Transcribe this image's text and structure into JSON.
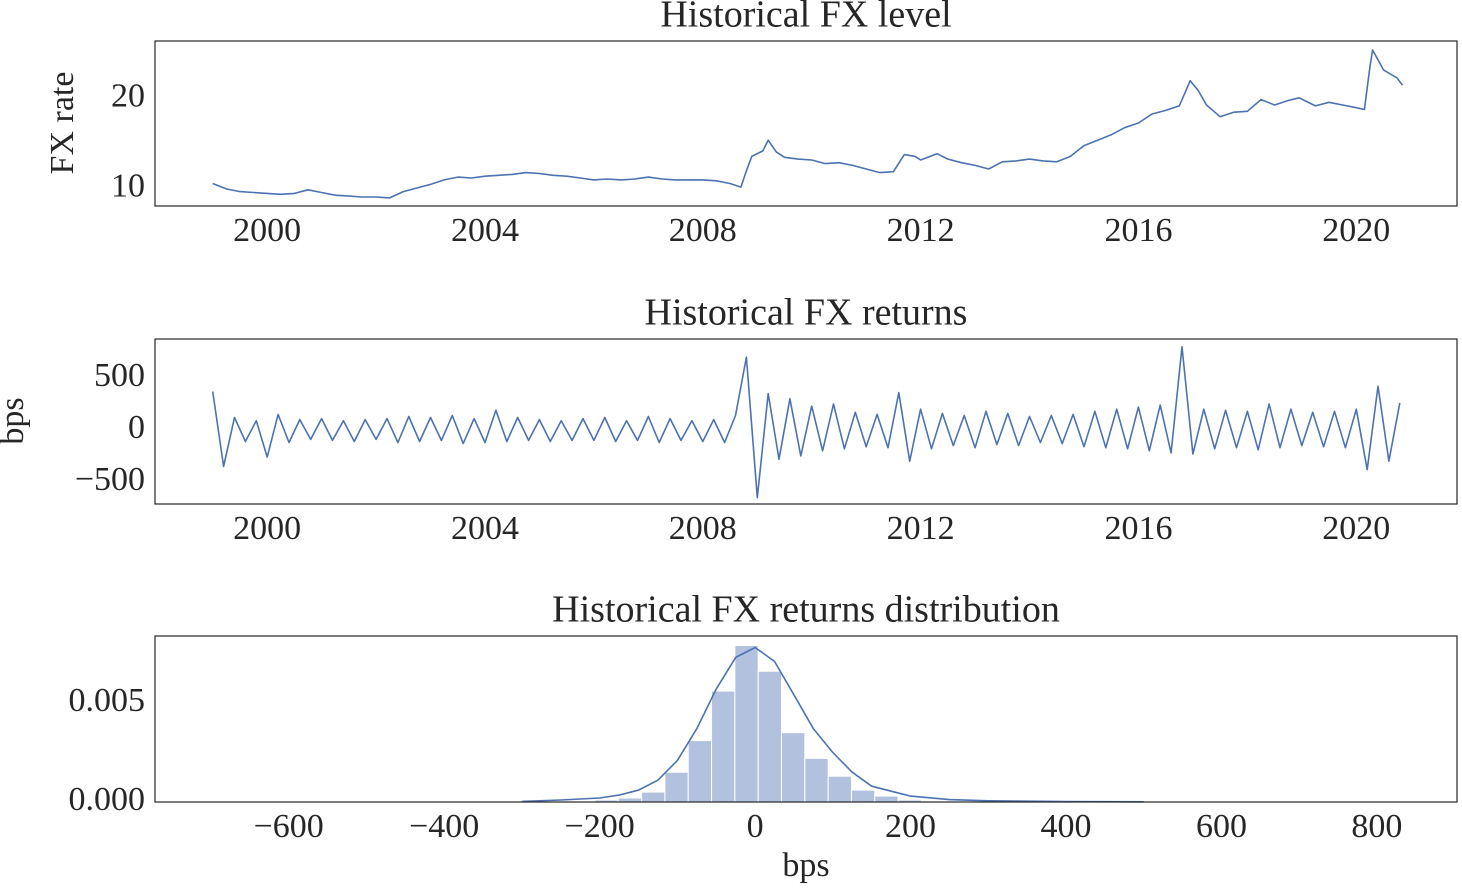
{
  "chart_data": [
    {
      "type": "line",
      "title": "Historical FX level",
      "ylabel": "FX rate",
      "color": "#4c72b0",
      "x": [
        1999.0,
        1999.25,
        1999.5,
        1999.75,
        2000.0,
        2000.25,
        2000.5,
        2000.75,
        2001.0,
        2001.25,
        2001.5,
        2001.75,
        2002.0,
        2002.25,
        2002.5,
        2002.75,
        2003.0,
        2003.25,
        2003.5,
        2003.75,
        2004.0,
        2004.25,
        2004.5,
        2004.75,
        2005.0,
        2005.25,
        2005.5,
        2005.75,
        2006.0,
        2006.25,
        2006.5,
        2006.75,
        2007.0,
        2007.25,
        2007.5,
        2007.75,
        2008.0,
        2008.25,
        2008.5,
        2008.7,
        2008.8,
        2008.9,
        2009.1,
        2009.2,
        2009.35,
        2009.5,
        2009.75,
        2010.0,
        2010.25,
        2010.5,
        2010.75,
        2011.0,
        2011.25,
        2011.5,
        2011.7,
        2011.9,
        2012.0,
        2012.3,
        2012.5,
        2012.75,
        2013.0,
        2013.25,
        2013.5,
        2013.75,
        2014.0,
        2014.25,
        2014.5,
        2014.75,
        2015.0,
        2015.25,
        2015.5,
        2015.75,
        2016.0,
        2016.25,
        2016.5,
        2016.75,
        2016.95,
        2017.1,
        2017.25,
        2017.5,
        2017.75,
        2018.0,
        2018.25,
        2018.5,
        2018.75,
        2018.95,
        2019.25,
        2019.5,
        2019.75,
        2020.0,
        2020.15,
        2020.25,
        2020.3,
        2020.5,
        2020.75,
        2020.85
      ],
      "values": [
        10.6,
        10.0,
        9.7,
        9.6,
        9.5,
        9.4,
        9.5,
        9.9,
        9.6,
        9.3,
        9.2,
        9.1,
        9.1,
        9.0,
        9.7,
        10.1,
        10.5,
        11.0,
        11.3,
        11.2,
        11.4,
        11.5,
        11.6,
        11.8,
        11.7,
        11.5,
        11.4,
        11.2,
        11.0,
        11.1,
        11.0,
        11.1,
        11.3,
        11.1,
        11.0,
        11.0,
        11.0,
        10.9,
        10.6,
        10.2,
        12.0,
        13.6,
        14.2,
        15.4,
        14.1,
        13.5,
        13.3,
        13.2,
        12.8,
        12.9,
        12.6,
        12.2,
        11.8,
        11.9,
        13.8,
        13.6,
        13.2,
        13.9,
        13.3,
        12.9,
        12.6,
        12.2,
        13.0,
        13.1,
        13.3,
        13.1,
        13.0,
        13.6,
        14.8,
        15.4,
        16.0,
        16.8,
        17.3,
        18.3,
        18.7,
        19.2,
        22.0,
        20.9,
        19.3,
        18.0,
        18.5,
        18.6,
        19.9,
        19.3,
        19.8,
        20.1,
        19.2,
        19.6,
        19.3,
        19.0,
        18.8,
        23.5,
        25.4,
        23.2,
        22.3,
        21.5
      ],
      "xlim": [
        1997.94,
        2021.85
      ],
      "xticks": [
        2000,
        2004,
        2008,
        2012,
        2016,
        2020
      ],
      "ylim": [
        8.1,
        26.4
      ],
      "yticks": [
        10,
        20
      ]
    },
    {
      "type": "line",
      "title": "Historical FX returns",
      "ylabel": "bps",
      "color": "#4c72b0",
      "x": [
        1999.0,
        1999.2,
        1999.4,
        1999.6,
        1999.8,
        2000.0,
        2000.2,
        2000.4,
        2000.6,
        2000.8,
        2001.0,
        2001.2,
        2001.4,
        2001.6,
        2001.8,
        2002.0,
        2002.2,
        2002.4,
        2002.6,
        2002.8,
        2003.0,
        2003.2,
        2003.4,
        2003.6,
        2003.8,
        2004.0,
        2004.2,
        2004.4,
        2004.6,
        2004.8,
        2005.0,
        2005.2,
        2005.4,
        2005.6,
        2005.8,
        2006.0,
        2006.2,
        2006.4,
        2006.6,
        2006.8,
        2007.0,
        2007.2,
        2007.4,
        2007.6,
        2007.8,
        2008.0,
        2008.2,
        2008.4,
        2008.6,
        2008.8,
        2009.0,
        2009.2,
        2009.4,
        2009.6,
        2009.8,
        2010.0,
        2010.2,
        2010.4,
        2010.6,
        2010.8,
        2011.0,
        2011.2,
        2011.4,
        2011.6,
        2011.8,
        2012.0,
        2012.2,
        2012.4,
        2012.6,
        2012.8,
        2013.0,
        2013.2,
        2013.4,
        2013.6,
        2013.8,
        2014.0,
        2014.2,
        2014.4,
        2014.6,
        2014.8,
        2015.0,
        2015.2,
        2015.4,
        2015.6,
        2015.8,
        2016.0,
        2016.2,
        2016.4,
        2016.6,
        2016.8,
        2017.0,
        2017.2,
        2017.4,
        2017.6,
        2017.8,
        2018.0,
        2018.2,
        2018.4,
        2018.6,
        2018.8,
        2019.0,
        2019.2,
        2019.4,
        2019.6,
        2019.8,
        2020.0,
        2020.2,
        2020.4,
        2020.6,
        2020.8
      ],
      "values": [
        370,
        -350,
        120,
        -110,
        90,
        -260,
        150,
        -120,
        100,
        -90,
        110,
        -100,
        90,
        -110,
        100,
        -90,
        110,
        -120,
        130,
        -110,
        120,
        -100,
        140,
        -130,
        110,
        -120,
        190,
        -110,
        120,
        -100,
        100,
        -110,
        90,
        -100,
        110,
        -100,
        120,
        -110,
        90,
        -100,
        130,
        -120,
        110,
        -100,
        90,
        -110,
        100,
        -120,
        140,
        700,
        -650,
        350,
        -280,
        300,
        -250,
        230,
        -200,
        250,
        -180,
        170,
        -160,
        150,
        -170,
        360,
        -300,
        200,
        -180,
        160,
        -150,
        140,
        -170,
        180,
        -140,
        160,
        -150,
        130,
        -120,
        140,
        -130,
        150,
        -160,
        180,
        -170,
        200,
        -180,
        220,
        -200,
        240,
        -220,
        800,
        -230,
        200,
        -180,
        190,
        -170,
        180,
        -190,
        250,
        -170,
        200,
        -150,
        170,
        -160,
        180,
        -170,
        200,
        -380,
        420,
        -300,
        260
      ],
      "xlim": [
        1997.94,
        2021.85
      ],
      "xticks": [
        2000,
        2004,
        2008,
        2012,
        2016,
        2020
      ],
      "ylim": [
        -711,
        875
      ],
      "yticks": [
        {
          "value": -500,
          "label": "−500"
        },
        0,
        500
      ]
    },
    {
      "type": "histogram",
      "title": "Historical FX returns distribution",
      "xlabel": "bps",
      "color": "#b1c1de",
      "bins": [
        -716,
        -686,
        -656,
        -626,
        -596,
        -566,
        -536,
        -506,
        -476,
        -446,
        -416,
        -386,
        -356,
        -326,
        -296,
        -266,
        -236,
        -206,
        -176,
        -146,
        -116,
        -86,
        -56,
        -26,
        4,
        34,
        64,
        94,
        124,
        154,
        184,
        214,
        244,
        274,
        304,
        334,
        364,
        394,
        424,
        454,
        484,
        514,
        544,
        574,
        604,
        634,
        664,
        694,
        724,
        754,
        784,
        814
      ],
      "values": [
        0,
        0,
        0,
        0,
        0,
        0,
        0,
        0,
        0,
        0,
        0,
        0,
        0,
        0,
        0,
        0,
        0,
        0.0001,
        0.0002,
        0.0005,
        0.0015,
        0.0031,
        0.0056,
        0.0079,
        0.0066,
        0.0035,
        0.0022,
        0.0013,
        0.0006,
        0.0003,
        0.0001,
        0,
        0,
        0,
        0,
        0,
        0,
        0,
        0,
        0,
        0,
        0,
        0,
        0,
        0,
        0,
        0,
        0,
        0,
        0,
        0
      ],
      "kde": {
        "color": "#4c72b0",
        "x": [
          -300,
          -250,
          -200,
          -175,
          -150,
          -125,
          -100,
          -75,
          -50,
          -25,
          0,
          25,
          50,
          75,
          100,
          125,
          150,
          200,
          250,
          300,
          400,
          500
        ],
        "values": [
          3e-05,
          0.0001,
          0.0002,
          0.00035,
          0.0006,
          0.0011,
          0.0021,
          0.0037,
          0.0057,
          0.0073,
          0.0078,
          0.0071,
          0.0054,
          0.0037,
          0.0025,
          0.0015,
          0.0008,
          0.0003,
          0.00012,
          6e-05,
          2e-05,
          1e-05
        ]
      },
      "xlim": [
        -772,
        903
      ],
      "xticks": [
        {
          "value": -600,
          "label": "−600"
        },
        {
          "value": -400,
          "label": "−400"
        },
        {
          "value": -200,
          "label": "−200"
        },
        0,
        200,
        400,
        600,
        800
      ],
      "ylim": [
        0,
        0.00838
      ],
      "yticks": [
        {
          "value": 0,
          "label": "0.000"
        },
        {
          "value": 0.005,
          "label": "0.005"
        }
      ]
    }
  ]
}
